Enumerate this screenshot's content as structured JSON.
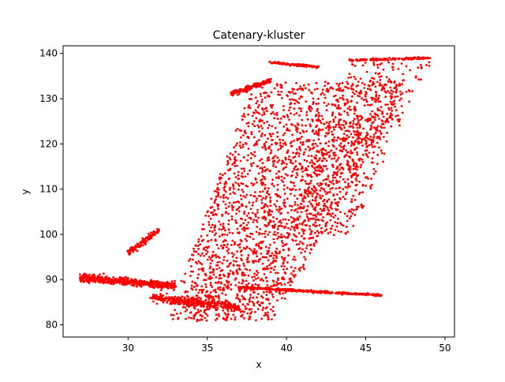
{
  "chart_data": {
    "type": "scatter",
    "title": "Catenary-kluster",
    "xlabel": "x",
    "ylabel": "y",
    "xlim": [
      25.9,
      50.6
    ],
    "ylim": [
      77.3,
      141.7
    ],
    "x_ticks": [
      30,
      35,
      40,
      45,
      50
    ],
    "y_ticks": [
      80,
      90,
      100,
      110,
      120,
      130,
      140
    ],
    "grid": false,
    "legend": "none",
    "marker_color": "#ff0000",
    "series": [
      {
        "name": "",
        "regions": [
          {
            "shape": "parallelogram",
            "description": "main band",
            "bottom_edge": [
              [
                32.5,
                81
              ],
              [
                39,
                81
              ]
            ],
            "top_edge": [
              [
                38,
                134
              ],
              [
                48,
                134
              ]
            ],
            "density": 2200
          },
          {
            "shape": "parallelogram",
            "description": "upper-right fan",
            "bottom_edge": [
              [
                40,
                100
              ],
              [
                44,
                100
              ]
            ],
            "top_edge": [
              [
                44,
                138
              ],
              [
                49,
                138
              ]
            ],
            "density": 500
          },
          {
            "shape": "line_band",
            "description": "left horizontal arm",
            "from": [
              27,
              90.5
            ],
            "to": [
              33,
              88.5
            ],
            "spread": 1.6,
            "density": 500
          },
          {
            "shape": "line_band",
            "description": "right tail",
            "from": [
              37,
              88.3
            ],
            "to": [
              46,
              86.5
            ],
            "spread": 0.5,
            "density": 350
          },
          {
            "shape": "line_band",
            "description": "top streak",
            "from": [
              39,
              138
            ],
            "to": [
              42,
              137
            ],
            "spread": 0.5,
            "density": 120
          },
          {
            "shape": "line_band",
            "description": "upper-right streak",
            "from": [
              44,
              138.5
            ],
            "to": [
              49,
              139
            ],
            "spread": 0.5,
            "density": 150
          },
          {
            "shape": "line_band",
            "description": "top-left wisp",
            "from": [
              36.5,
              131
            ],
            "to": [
              39,
              134
            ],
            "spread": 1.2,
            "density": 150
          },
          {
            "shape": "line_band",
            "description": "left wisp",
            "from": [
              30,
              96
            ],
            "to": [
              32,
              101
            ],
            "spread": 1.5,
            "density": 120
          },
          {
            "shape": "line_band",
            "description": "lower fill",
            "from": [
              31.5,
              86
            ],
            "to": [
              37,
              84
            ],
            "spread": 2.0,
            "density": 300
          }
        ]
      }
    ]
  }
}
